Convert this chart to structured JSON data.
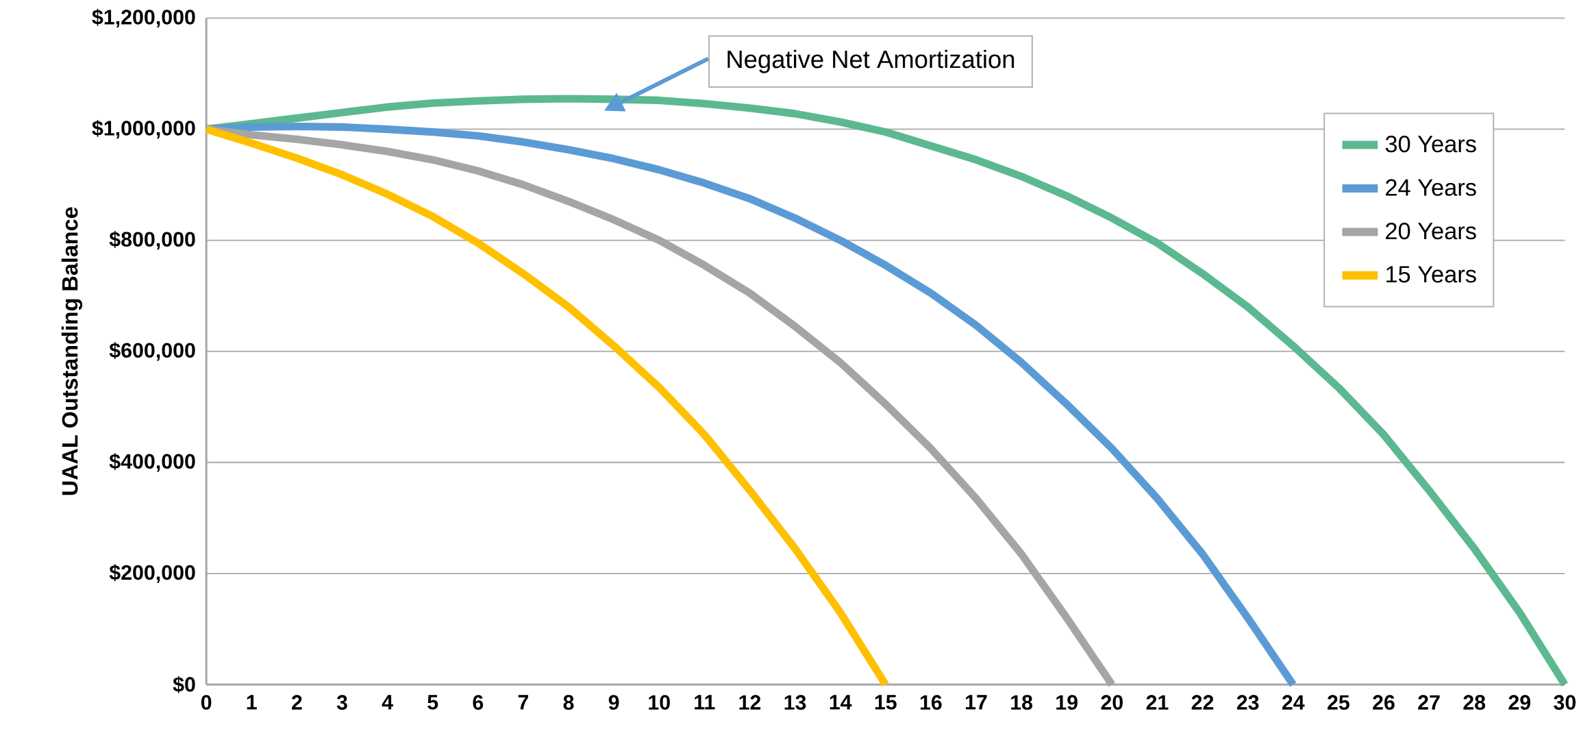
{
  "chart_data": {
    "type": "line",
    "ylabel": "UAAL Outstanding Balance",
    "categories": [
      "0",
      "1",
      "2",
      "3",
      "4",
      "5",
      "6",
      "7",
      "8",
      "9",
      "10",
      "11",
      "12",
      "13",
      "14",
      "15",
      "16",
      "17",
      "18",
      "19",
      "20",
      "21",
      "22",
      "23",
      "24",
      "25",
      "26",
      "27",
      "28",
      "29",
      "30"
    ],
    "series": [
      {
        "name": "30 Years",
        "color": "#5cb891",
        "values": [
          1000000,
          1010000,
          1020000,
          1030000,
          1040000,
          1047000,
          1051000,
          1054000,
          1055000,
          1054000,
          1052000,
          1046000,
          1038000,
          1028000,
          1013000,
          995000,
          970000,
          945000,
          915000,
          880000,
          840000,
          795000,
          740000,
          680000,
          610000,
          535000,
          450000,
          350000,
          245000,
          130000,
          0
        ]
      },
      {
        "name": "24 Years",
        "color": "#5b9bd5",
        "values": [
          1000000,
          1004000,
          1005000,
          1004000,
          1000000,
          995000,
          988000,
          977000,
          963000,
          947000,
          927000,
          903000,
          875000,
          840000,
          800000,
          755000,
          705000,
          647000,
          580000,
          505000,
          425000,
          335000,
          235000,
          120000,
          0,
          null,
          null,
          null,
          null,
          null,
          null
        ]
      },
      {
        "name": "20 Years",
        "color": "#a5a5a5",
        "values": [
          1000000,
          990000,
          982000,
          972000,
          960000,
          945000,
          925000,
          900000,
          870000,
          837000,
          800000,
          755000,
          705000,
          645000,
          580000,
          505000,
          425000,
          335000,
          235000,
          120000,
          0,
          null,
          null,
          null,
          null,
          null,
          null,
          null,
          null,
          null,
          null
        ]
      },
      {
        "name": "15 Years",
        "color": "#ffc000",
        "values": [
          1000000,
          975000,
          948000,
          918000,
          883000,
          843000,
          795000,
          740000,
          680000,
          610000,
          535000,
          450000,
          350000,
          245000,
          130000,
          0,
          null,
          null,
          null,
          null,
          null,
          null,
          null,
          null,
          null,
          null,
          null,
          null,
          null,
          null,
          null
        ]
      }
    ],
    "ylim": [
      0,
      1200000
    ],
    "yticks": [
      {
        "value": 0,
        "label": "$0"
      },
      {
        "value": 200000,
        "label": "$200,000"
      },
      {
        "value": 400000,
        "label": "$400,000"
      },
      {
        "value": 600000,
        "label": "$600,000"
      },
      {
        "value": 800000,
        "label": "$800,000"
      },
      {
        "value": 1000000,
        "label": "$1,000,000"
      },
      {
        "value": 1200000,
        "label": "$1,200,000"
      }
    ],
    "grid": "y",
    "legend": "top right",
    "marker": "none",
    "line_style": "solid",
    "annotations": [
      "Negative Net Amortization"
    ]
  }
}
